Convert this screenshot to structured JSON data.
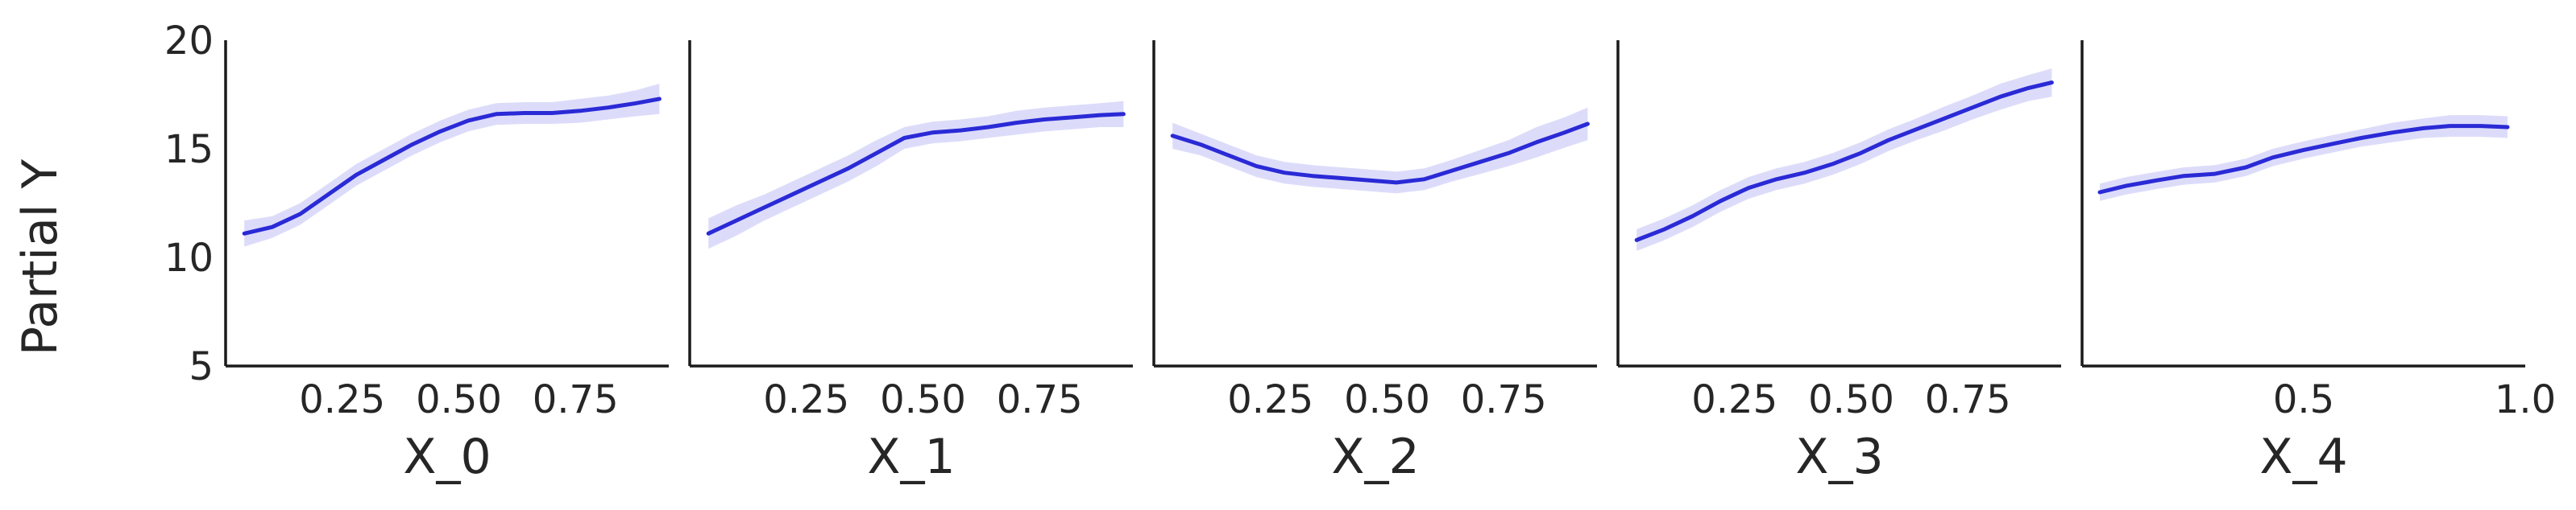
{
  "figure": {
    "ylabel": "Partial Y",
    "line_color": "#2a2ad6",
    "band_color": "#bfbff5",
    "axis_color": "#1a1a1a",
    "text_color": "#262626"
  },
  "chart_data": [
    {
      "type": "line",
      "xlabel": "X_0",
      "xlim": [
        0.0,
        0.95
      ],
      "ylim": [
        5,
        20
      ],
      "xticks": [
        0.25,
        0.5,
        0.75
      ],
      "xtick_labels": [
        "0.25",
        "0.50",
        "0.75"
      ],
      "yticks": [
        5,
        10,
        15,
        20
      ],
      "ytick_labels": [
        "5",
        "10",
        "15",
        "20"
      ],
      "x": [
        0.04,
        0.1,
        0.16,
        0.22,
        0.28,
        0.34,
        0.4,
        0.46,
        0.52,
        0.58,
        0.64,
        0.7,
        0.76,
        0.82,
        0.88,
        0.93
      ],
      "y": [
        11.1,
        11.4,
        12.0,
        12.9,
        13.8,
        14.5,
        15.2,
        15.8,
        16.3,
        16.6,
        16.65,
        16.65,
        16.75,
        16.9,
        17.1,
        17.3
      ],
      "lower": [
        10.5,
        10.9,
        11.5,
        12.4,
        13.3,
        14.0,
        14.7,
        15.3,
        15.8,
        16.1,
        16.15,
        16.15,
        16.2,
        16.35,
        16.5,
        16.6
      ],
      "upper": [
        11.7,
        11.9,
        12.5,
        13.4,
        14.3,
        15.0,
        15.7,
        16.3,
        16.8,
        17.1,
        17.15,
        17.15,
        17.3,
        17.45,
        17.7,
        18.0
      ]
    },
    {
      "type": "line",
      "xlabel": "X_1",
      "xlim": [
        0.0,
        0.95
      ],
      "ylim": [
        5,
        20
      ],
      "xticks": [
        0.25,
        0.5,
        0.75
      ],
      "xtick_labels": [
        "0.25",
        "0.50",
        "0.75"
      ],
      "yticks": [
        5,
        10,
        15,
        20
      ],
      "ytick_labels": [],
      "x": [
        0.04,
        0.1,
        0.16,
        0.22,
        0.28,
        0.34,
        0.4,
        0.46,
        0.52,
        0.58,
        0.64,
        0.7,
        0.76,
        0.82,
        0.88,
        0.93
      ],
      "y": [
        11.1,
        11.7,
        12.3,
        12.9,
        13.5,
        14.1,
        14.8,
        15.5,
        15.75,
        15.85,
        16.0,
        16.2,
        16.35,
        16.45,
        16.55,
        16.6
      ],
      "lower": [
        10.4,
        11.0,
        11.7,
        12.3,
        12.9,
        13.5,
        14.2,
        15.0,
        15.25,
        15.35,
        15.5,
        15.65,
        15.8,
        15.9,
        16.0,
        16.0
      ],
      "upper": [
        11.8,
        12.4,
        12.9,
        13.5,
        14.1,
        14.7,
        15.4,
        16.0,
        16.25,
        16.35,
        16.5,
        16.75,
        16.9,
        17.0,
        17.1,
        17.2
      ]
    },
    {
      "type": "line",
      "xlabel": "X_2",
      "xlim": [
        0.0,
        0.95
      ],
      "ylim": [
        5,
        20
      ],
      "xticks": [
        0.25,
        0.5,
        0.75
      ],
      "xtick_labels": [
        "0.25",
        "0.50",
        "0.75"
      ],
      "yticks": [
        5,
        10,
        15,
        20
      ],
      "ytick_labels": [],
      "x": [
        0.04,
        0.1,
        0.16,
        0.22,
        0.28,
        0.34,
        0.4,
        0.46,
        0.52,
        0.58,
        0.64,
        0.7,
        0.76,
        0.82,
        0.88,
        0.93
      ],
      "y": [
        15.6,
        15.2,
        14.7,
        14.2,
        13.9,
        13.75,
        13.65,
        13.55,
        13.45,
        13.6,
        14.0,
        14.4,
        14.8,
        15.3,
        15.75,
        16.15
      ],
      "lower": [
        15.0,
        14.7,
        14.2,
        13.7,
        13.4,
        13.25,
        13.15,
        13.05,
        12.95,
        13.1,
        13.5,
        13.85,
        14.2,
        14.6,
        15.05,
        15.4
      ],
      "upper": [
        16.2,
        15.7,
        15.2,
        14.7,
        14.4,
        14.25,
        14.15,
        14.05,
        13.95,
        14.1,
        14.5,
        14.95,
        15.4,
        16.0,
        16.45,
        16.9
      ]
    },
    {
      "type": "line",
      "xlabel": "X_3",
      "xlim": [
        0.0,
        0.95
      ],
      "ylim": [
        5,
        20
      ],
      "xticks": [
        0.25,
        0.5,
        0.75
      ],
      "xtick_labels": [
        "0.25",
        "0.50",
        "0.75"
      ],
      "yticks": [
        5,
        10,
        15,
        20
      ],
      "ytick_labels": [],
      "x": [
        0.04,
        0.1,
        0.16,
        0.22,
        0.28,
        0.34,
        0.4,
        0.46,
        0.52,
        0.58,
        0.64,
        0.7,
        0.76,
        0.82,
        0.88,
        0.93
      ],
      "y": [
        10.8,
        11.3,
        11.9,
        12.6,
        13.2,
        13.6,
        13.9,
        14.3,
        14.8,
        15.4,
        15.9,
        16.4,
        16.9,
        17.4,
        17.8,
        18.05
      ],
      "lower": [
        10.3,
        10.8,
        11.4,
        12.1,
        12.7,
        13.1,
        13.4,
        13.8,
        14.3,
        14.9,
        15.4,
        15.85,
        16.35,
        16.8,
        17.2,
        17.4
      ],
      "upper": [
        11.3,
        11.8,
        12.4,
        13.1,
        13.7,
        14.1,
        14.4,
        14.8,
        15.3,
        15.9,
        16.4,
        16.95,
        17.45,
        18.0,
        18.4,
        18.7
      ]
    },
    {
      "type": "line",
      "xlabel": "X_4",
      "xlim": [
        0.0,
        1.0
      ],
      "ylim": [
        5,
        20
      ],
      "xticks": [
        0.5,
        1.0
      ],
      "xtick_labels": [
        "0.5",
        "1.0"
      ],
      "yticks": [
        5,
        10,
        15,
        20
      ],
      "ytick_labels": [],
      "x": [
        0.04,
        0.1,
        0.17,
        0.23,
        0.3,
        0.37,
        0.43,
        0.5,
        0.57,
        0.63,
        0.7,
        0.77,
        0.83,
        0.9,
        0.96
      ],
      "y": [
        13.0,
        13.3,
        13.55,
        13.75,
        13.85,
        14.15,
        14.6,
        14.95,
        15.25,
        15.5,
        15.75,
        15.95,
        16.05,
        16.05,
        16.0
      ],
      "lower": [
        12.6,
        12.9,
        13.15,
        13.35,
        13.45,
        13.75,
        14.2,
        14.55,
        14.85,
        15.1,
        15.3,
        15.5,
        15.55,
        15.55,
        15.5
      ],
      "upper": [
        13.4,
        13.7,
        13.95,
        14.15,
        14.25,
        14.55,
        15.0,
        15.35,
        15.65,
        15.9,
        16.2,
        16.4,
        16.55,
        16.55,
        16.5
      ]
    }
  ]
}
